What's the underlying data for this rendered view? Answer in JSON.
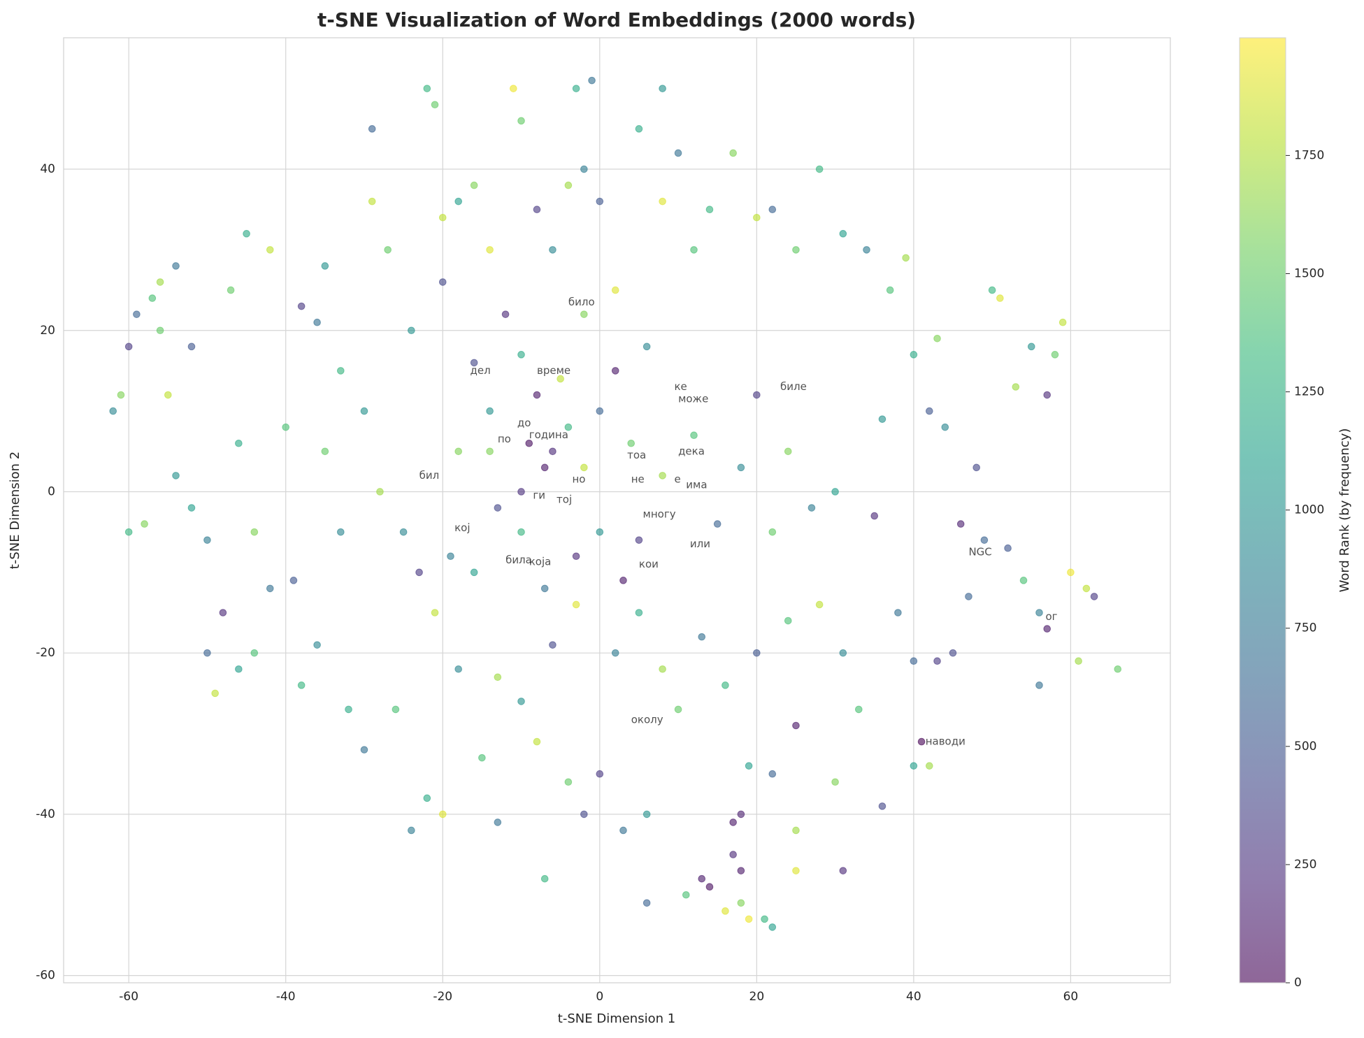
{
  "chart_data": {
    "type": "scatter",
    "title": "t-SNE Visualization of Word Embeddings (2000 words)",
    "xlabel": "t-SNE Dimension 1",
    "ylabel": "t-SNE Dimension 2",
    "colorbar_label": "Word Rank (by frequency)",
    "colormap": "viridis",
    "grid": true,
    "xlim": [
      -68.3,
      72.7
    ],
    "ylim": [
      -60.9,
      56.3
    ],
    "xticks": [
      -60,
      -40,
      -20,
      0,
      20,
      40,
      60
    ],
    "yticks": [
      -60,
      -40,
      -20,
      0,
      20,
      40
    ],
    "clim": [
      0,
      1999
    ],
    "cticks": [
      0,
      250,
      500,
      750,
      1000,
      1250,
      1500,
      1750
    ],
    "x": [
      -62,
      -61,
      -60,
      -59,
      -57,
      -56,
      -54,
      -56,
      -58,
      -60,
      -52,
      -50,
      -48,
      -49,
      -50,
      -46,
      -44,
      -47,
      -45,
      -42,
      -38,
      -35,
      -36,
      -40,
      -39,
      -38,
      -36,
      -32,
      -30,
      -29,
      -29,
      -27,
      -30,
      -28,
      -25,
      -23,
      -26,
      -24,
      -22,
      -20,
      -22,
      -21,
      -20,
      -18,
      -16,
      -14,
      -12,
      -16,
      -14,
      -18,
      -11,
      -10,
      -8,
      -6,
      -4,
      -2,
      0,
      -3,
      -1,
      -8,
      -6,
      -4,
      -2,
      0,
      2,
      4,
      6,
      8,
      5,
      8,
      10,
      12,
      14,
      17,
      20,
      22,
      25,
      28,
      31,
      34,
      37,
      39,
      43,
      40,
      50,
      51,
      55,
      58,
      59,
      57,
      53,
      42,
      44,
      48,
      46,
      49,
      52,
      54,
      56,
      57,
      60,
      62,
      63,
      66,
      61,
      56,
      47,
      45,
      43,
      40,
      38,
      41,
      40,
      42,
      36,
      31,
      30,
      25,
      25,
      22,
      25,
      19,
      17,
      18,
      17,
      18,
      14,
      13,
      16,
      18,
      21,
      22,
      19,
      11,
      6,
      6,
      3,
      0,
      -2,
      -4,
      -7,
      -8,
      -13,
      -15,
      -13,
      -10,
      -6,
      -3,
      2,
      5,
      8,
      10,
      13,
      16,
      20,
      24,
      28,
      31,
      33,
      35,
      30,
      27,
      24,
      20,
      22,
      18,
      15,
      12,
      8,
      5,
      3,
      0,
      -3,
      -7,
      -10,
      -13,
      -16,
      -19,
      -21,
      -18,
      -14,
      -10,
      -7,
      -9,
      -5,
      -2,
      2,
      -10,
      -20,
      -24,
      -33,
      -35,
      -33,
      -44,
      -42,
      -46,
      -54,
      -52,
      -55,
      36
    ],
    "values": [
      10,
      12,
      18,
      22,
      24,
      26,
      28,
      20,
      -4,
      -5,
      -2,
      -6,
      -15,
      -25,
      -20,
      -22,
      -20,
      25,
      32,
      30,
      23,
      28,
      21,
      8,
      -11,
      -24,
      -19,
      -27,
      -32,
      45,
      36,
      30,
      10,
      0,
      -5,
      -10,
      -27,
      -42,
      -38,
      -40,
      50,
      48,
      34,
      36,
      38,
      30,
      22,
      16,
      10,
      5,
      50,
      46,
      35,
      30,
      38,
      40,
      36,
      50,
      51,
      12,
      5,
      8,
      3,
      10,
      15,
      6,
      18,
      50,
      45,
      36,
      42,
      30,
      35,
      42,
      34,
      35,
      30,
      40,
      32,
      30,
      25,
      29,
      19,
      17,
      25,
      24,
      18,
      17,
      21,
      12,
      13,
      10,
      8,
      3,
      -4,
      -6,
      -7,
      -11,
      -15,
      -17,
      -10,
      -12,
      -13,
      -22,
      -21,
      -24,
      -13,
      -20,
      -21,
      -21,
      -15,
      -31,
      -34,
      -34,
      -39,
      -47,
      -36,
      -42,
      -47,
      -35,
      -29,
      -34,
      -41,
      -40,
      -45,
      -47,
      -49,
      -48,
      -52,
      -51,
      -53,
      -54,
      -53,
      -50,
      -51,
      -40,
      -42,
      -35,
      -40,
      -36,
      -48,
      -31,
      -41,
      -33,
      -23,
      -26,
      -19,
      -14,
      -20,
      -15,
      -22,
      -27,
      -18,
      -24,
      -20,
      -16,
      -14,
      -20,
      -27,
      -3,
      0,
      -2,
      5,
      12,
      -5,
      3,
      -4,
      7,
      2,
      -6,
      -11,
      -5,
      -8,
      -12,
      -5,
      -2,
      -10,
      -8,
      -15,
      -22,
      5,
      0,
      3,
      6,
      14,
      22,
      25,
      17,
      26,
      20,
      15,
      5,
      -5,
      -5,
      -12,
      6,
      2,
      18,
      12,
      9
    ],
    "ranks": [
      900,
      1600,
      300,
      600,
      1400,
      1700,
      700,
      1500,
      1600,
      1300,
      1100,
      800,
      200,
      1800,
      600,
      1100,
      1400,
      1500,
      1200,
      1800,
      300,
      1000,
      700,
      1400,
      500,
      1300,
      900,
      1200,
      700,
      600,
      1800,
      1500,
      1000,
      1700,
      900,
      300,
      1400,
      800,
      1200,
      1900,
      1300,
      1500,
      1800,
      1100,
      1600,
      1900,
      200,
      400,
      1000,
      1600,
      1950,
      1500,
      300,
      900,
      1700,
      800,
      500,
      1200,
      700,
      100,
      200,
      1300,
      1800,
      600,
      100,
      1500,
      900,
      1000,
      1200,
      1900,
      700,
      1400,
      1300,
      1600,
      1800,
      600,
      1500,
      1300,
      1100,
      800,
      1400,
      1700,
      1600,
      1200,
      1300,
      1900,
      1000,
      1500,
      1800,
      200,
      1700,
      500,
      900,
      400,
      150,
      600,
      500,
      1400,
      800,
      100,
      1950,
      1800,
      300,
      1500,
      1700,
      700,
      600,
      400,
      300,
      600,
      700,
      0,
      1100,
      1700,
      400,
      200,
      1600,
      1700,
      1900,
      600,
      100,
      1100,
      100,
      150,
      200,
      100,
      50,
      120,
      1900,
      1600,
      1300,
      1100,
      1950,
      1400,
      600,
      1000,
      700,
      300,
      400,
      1500,
      1300,
      1800,
      700,
      1400,
      1700,
      1000,
      400,
      1900,
      800,
      1200,
      1700,
      1500,
      700,
      1300,
      500,
      1400,
      1800,
      900,
      1400,
      200,
      1100,
      800,
      1600,
      300,
      1500,
      900,
      600,
      1400,
      1700,
      300,
      100,
      1000,
      200,
      700,
      1300,
      400,
      1100,
      800,
      1800,
      900,
      1600,
      250,
      100,
      50,
      1800,
      1600,
      1900,
      1200,
      400,
      1000,
      1300,
      1500,
      900,
      1600,
      700,
      1200,
      1000,
      500,
      1800,
      1000
    ],
    "annotations": [
      {
        "text": "било",
        "x": -4,
        "y": 23.5
      },
      {
        "text": "дел",
        "x": -16.5,
        "y": 15
      },
      {
        "text": "време",
        "x": -8,
        "y": 15
      },
      {
        "text": "биле",
        "x": 23,
        "y": 13
      },
      {
        "text": "ке",
        "x": 9.5,
        "y": 13
      },
      {
        "text": "може",
        "x": 10,
        "y": 11.5
      },
      {
        "text": "до",
        "x": -10.5,
        "y": 8.5
      },
      {
        "text": "година",
        "x": -9,
        "y": 7
      },
      {
        "text": "по",
        "x": -13,
        "y": 6.5
      },
      {
        "text": "дека",
        "x": 10,
        "y": 5
      },
      {
        "text": "тоа",
        "x": 3.5,
        "y": 4.5
      },
      {
        "text": "бил",
        "x": -23,
        "y": 2
      },
      {
        "text": "но",
        "x": -3.5,
        "y": 1.5
      },
      {
        "text": "не",
        "x": 4,
        "y": 1.5
      },
      {
        "text": "е",
        "x": 9.5,
        "y": 1.5
      },
      {
        "text": "има",
        "x": 11,
        "y": 0.8
      },
      {
        "text": "ги",
        "x": -8.5,
        "y": -0.5
      },
      {
        "text": "тој",
        "x": -5.5,
        "y": -1
      },
      {
        "text": "кој",
        "x": -18.5,
        "y": -4.5
      },
      {
        "text": "многу",
        "x": 5.5,
        "y": -2.8
      },
      {
        "text": "или",
        "x": 11.5,
        "y": -6.5
      },
      {
        "text": "NGC",
        "x": 47,
        "y": -7.5
      },
      {
        "text": "била",
        "x": -12,
        "y": -8.5
      },
      {
        "text": "која",
        "x": -9,
        "y": -8.7
      },
      {
        "text": "кои",
        "x": 5,
        "y": -9
      },
      {
        "text": "ог",
        "x": 56.8,
        "y": -15.5
      },
      {
        "text": "околу",
        "x": 4,
        "y": -28.3
      },
      {
        "text": "наводи",
        "x": 41.5,
        "y": -31
      }
    ]
  }
}
